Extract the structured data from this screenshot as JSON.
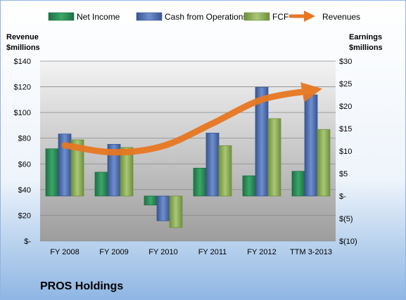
{
  "company": "PROS Holdings",
  "colors": {
    "net_income": "#2e8b57",
    "cash_from_operations": "#4f6fb0",
    "fcf": "#8fb35a",
    "revenues": "#e87722"
  },
  "chart_data": {
    "type": "bar",
    "categories": [
      "FY 2008",
      "FY 2009",
      "FY 2010",
      "FY 2011",
      "FY 2012",
      "TTM 3-2013"
    ],
    "series": [
      {
        "name": "Net Income",
        "axis": "right",
        "values": [
          10.5,
          5.3,
          -2.0,
          6.2,
          4.5,
          5.5
        ]
      },
      {
        "name": "Cash from Operations",
        "axis": "right",
        "values": [
          13.8,
          11.5,
          -5.5,
          14.0,
          24.2,
          22.5
        ]
      },
      {
        "name": "FCF",
        "axis": "right",
        "values": [
          12.5,
          10.8,
          -7.0,
          11.2,
          17.2,
          14.8
        ]
      },
      {
        "name": "Revenues",
        "axis": "left",
        "type": "line",
        "values": [
          74.5,
          69.0,
          74.0,
          91.5,
          110.0,
          117.0
        ]
      }
    ],
    "left_axis": {
      "title": [
        "Revenue",
        "$millions"
      ],
      "ylim": [
        0,
        140
      ],
      "ticks": [
        0,
        20,
        40,
        60,
        80,
        100,
        120,
        140
      ],
      "tick_labels": [
        "$-",
        "$20",
        "$40",
        "$60",
        "$80",
        "$100",
        "$120",
        "$140"
      ]
    },
    "right_axis": {
      "title": [
        "Earnings",
        "$millions"
      ],
      "ylim": [
        -10,
        30
      ],
      "ticks": [
        -10,
        -5,
        0,
        5,
        10,
        15,
        20,
        25,
        30
      ],
      "tick_labels": [
        "$(10)",
        "$(5)",
        "$-",
        "$5",
        "$10",
        "$15",
        "$20",
        "$25",
        "$30"
      ]
    },
    "legend": {
      "position": "top",
      "entries": [
        "Net Income",
        "Cash from Operations",
        "FCF",
        "Revenues"
      ]
    },
    "grid": true
  }
}
